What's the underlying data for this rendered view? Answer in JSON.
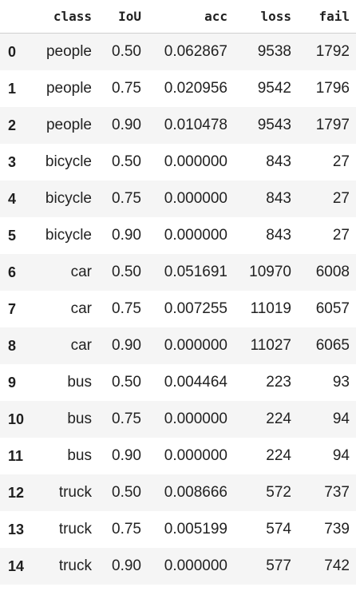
{
  "table": {
    "columns": [
      "class",
      "IoU",
      "acc",
      "loss",
      "fail"
    ],
    "rows": [
      {
        "index": "0",
        "class": "people",
        "IoU": "0.50",
        "acc": "0.062867",
        "loss": "9538",
        "fail": "1792"
      },
      {
        "index": "1",
        "class": "people",
        "IoU": "0.75",
        "acc": "0.020956",
        "loss": "9542",
        "fail": "1796"
      },
      {
        "index": "2",
        "class": "people",
        "IoU": "0.90",
        "acc": "0.010478",
        "loss": "9543",
        "fail": "1797"
      },
      {
        "index": "3",
        "class": "bicycle",
        "IoU": "0.50",
        "acc": "0.000000",
        "loss": "843",
        "fail": "27"
      },
      {
        "index": "4",
        "class": "bicycle",
        "IoU": "0.75",
        "acc": "0.000000",
        "loss": "843",
        "fail": "27"
      },
      {
        "index": "5",
        "class": "bicycle",
        "IoU": "0.90",
        "acc": "0.000000",
        "loss": "843",
        "fail": "27"
      },
      {
        "index": "6",
        "class": "car",
        "IoU": "0.50",
        "acc": "0.051691",
        "loss": "10970",
        "fail": "6008"
      },
      {
        "index": "7",
        "class": "car",
        "IoU": "0.75",
        "acc": "0.007255",
        "loss": "11019",
        "fail": "6057"
      },
      {
        "index": "8",
        "class": "car",
        "IoU": "0.90",
        "acc": "0.000000",
        "loss": "11027",
        "fail": "6065"
      },
      {
        "index": "9",
        "class": "bus",
        "IoU": "0.50",
        "acc": "0.004464",
        "loss": "223",
        "fail": "93"
      },
      {
        "index": "10",
        "class": "bus",
        "IoU": "0.75",
        "acc": "0.000000",
        "loss": "224",
        "fail": "94"
      },
      {
        "index": "11",
        "class": "bus",
        "IoU": "0.90",
        "acc": "0.000000",
        "loss": "224",
        "fail": "94"
      },
      {
        "index": "12",
        "class": "truck",
        "IoU": "0.50",
        "acc": "0.008666",
        "loss": "572",
        "fail": "737"
      },
      {
        "index": "13",
        "class": "truck",
        "IoU": "0.75",
        "acc": "0.005199",
        "loss": "574",
        "fail": "739"
      },
      {
        "index": "14",
        "class": "truck",
        "IoU": "0.90",
        "acc": "0.000000",
        "loss": "577",
        "fail": "742"
      }
    ]
  }
}
